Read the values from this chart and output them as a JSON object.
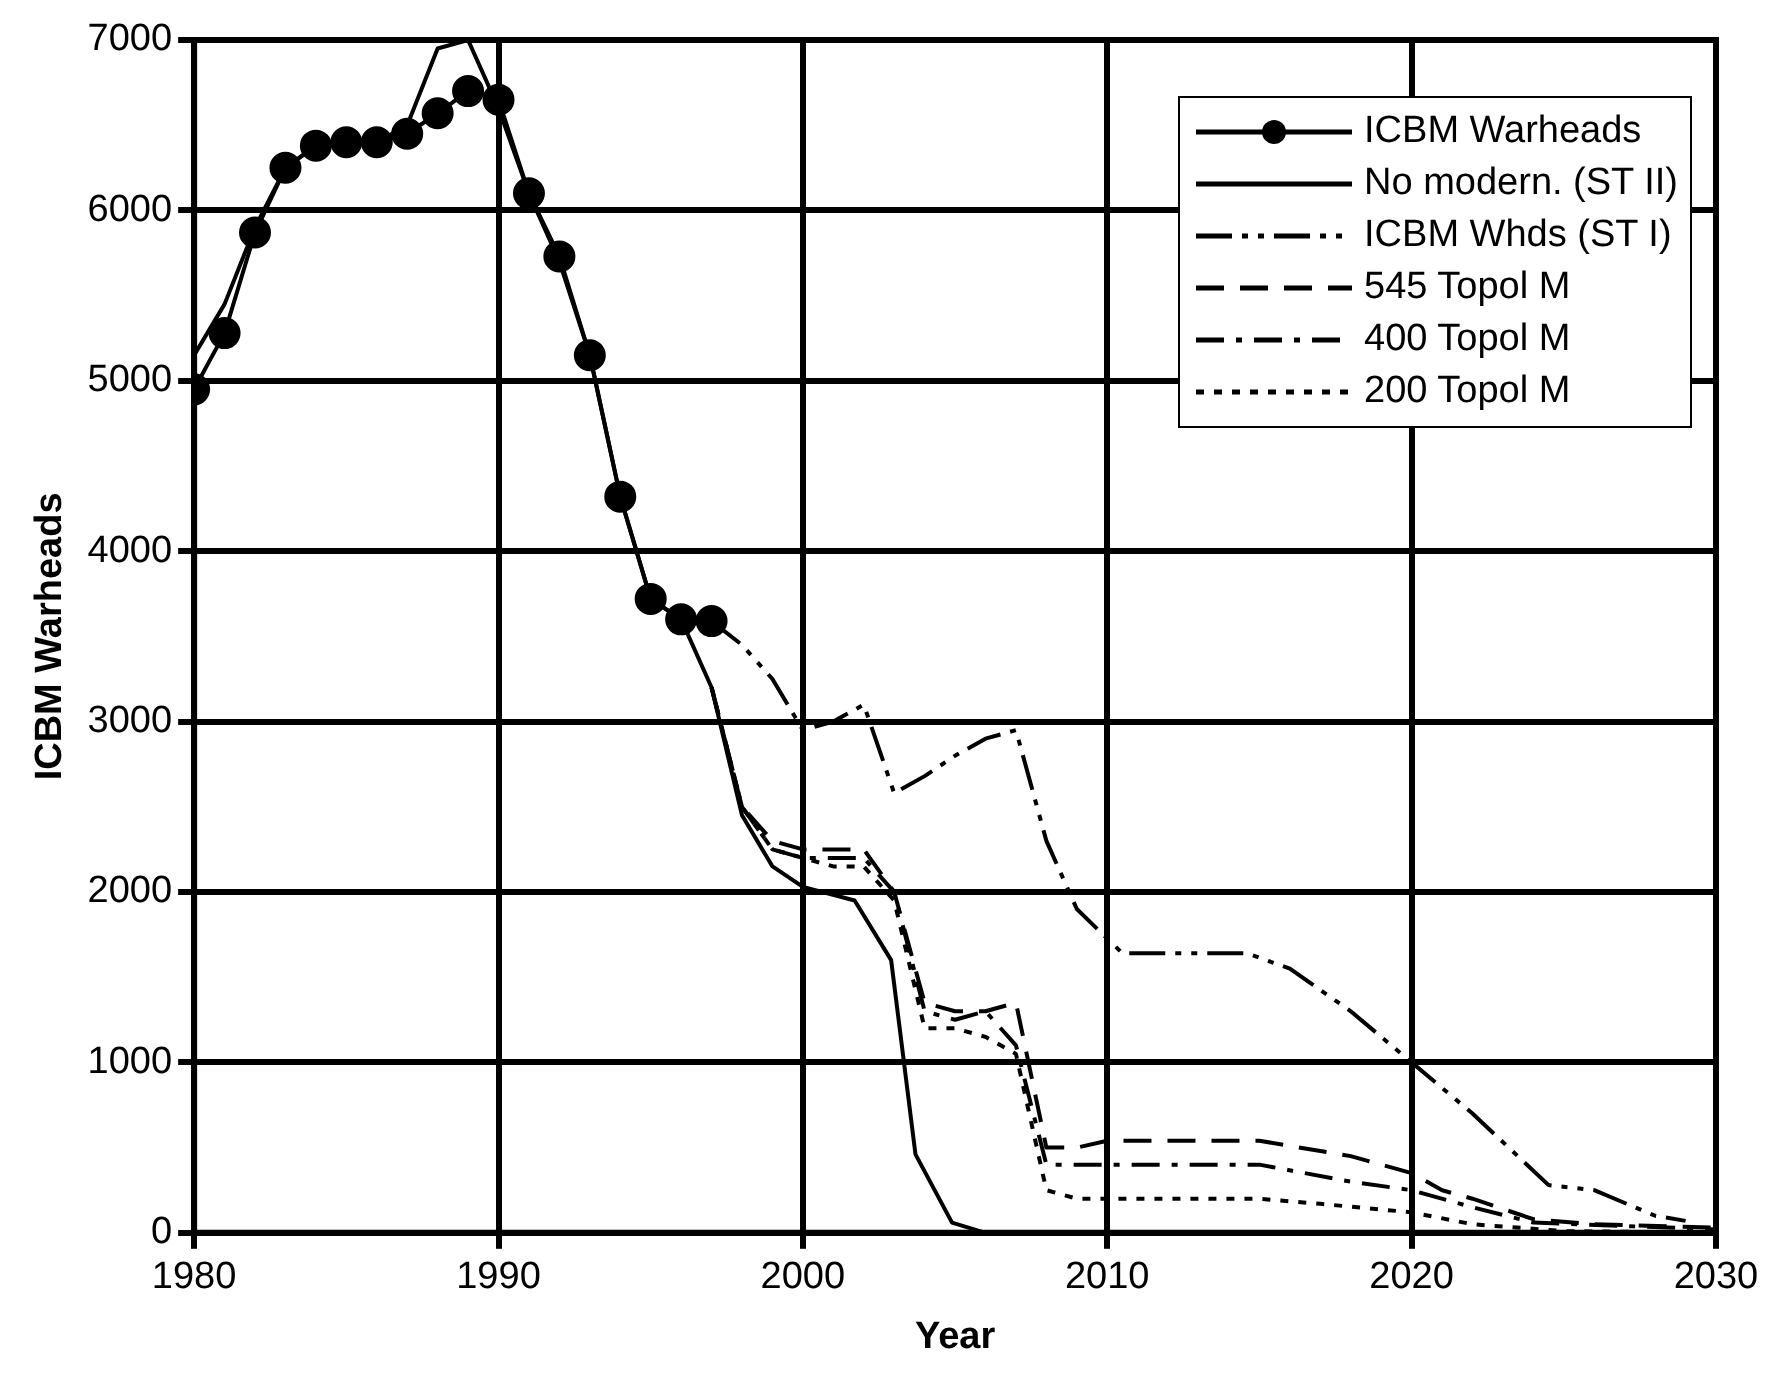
{
  "chart_data": {
    "type": "line",
    "xlabel": "Year",
    "ylabel": "ICBM Warheads",
    "xlim": [
      1980,
      2030
    ],
    "ylim": [
      0,
      7000
    ],
    "xticks": [
      1980,
      1990,
      2000,
      2010,
      2020,
      2030
    ],
    "yticks": [
      0,
      1000,
      2000,
      3000,
      4000,
      5000,
      6000,
      7000
    ],
    "grid": true,
    "legend": "top right",
    "series": [
      {
        "name": "ICBM Warheads",
        "color": "#000000",
        "marker": "circle",
        "line_style": "solid",
        "x": [
          1980,
          1981,
          1982,
          1983,
          1984,
          1985,
          1986,
          1987,
          1988,
          1989,
          1990,
          1991,
          1992,
          1993,
          1994,
          1995,
          1996,
          1997
        ],
        "values": [
          4950,
          5280,
          5870,
          6250,
          6380,
          6400,
          6400,
          6450,
          6570,
          6700,
          6650,
          6100,
          5730,
          5150,
          4320,
          3720,
          3600,
          3590
        ]
      },
      {
        "name": "No modern. (ST II)",
        "color": "#000000",
        "marker": "none",
        "line_style": "solid",
        "x": [
          1980,
          1981,
          1982,
          1983,
          1984,
          1986,
          1987,
          1988,
          1989,
          1990,
          1991,
          1992,
          1993,
          1994,
          1995,
          1996,
          1997,
          1998,
          1999,
          2000,
          2001.7,
          2002.9,
          2003.7,
          2004.9,
          2006,
          2030
        ],
        "values": [
          5150,
          5450,
          5900,
          6250,
          6380,
          6400,
          6500,
          6950,
          7000,
          6600,
          6100,
          5700,
          5150,
          4320,
          3720,
          3600,
          3200,
          2450,
          2150,
          2030,
          1950,
          1600,
          460,
          60,
          0,
          0
        ]
      },
      {
        "name": "ICBM Whds (ST I)",
        "color": "#000000",
        "marker": "none",
        "line_style": "dashed",
        "x": [
          1997,
          1998,
          1999,
          2000,
          2001,
          2002,
          2003,
          2004,
          2005,
          2006,
          2007,
          2008,
          2009,
          2010.5,
          2014.6,
          2016,
          2018,
          2020,
          2022,
          2024.5,
          2026,
          2028,
          2029
        ],
        "values": [
          3590,
          3450,
          3250,
          2950,
          3000,
          3100,
          2580,
          2680,
          2800,
          2900,
          2950,
          2300,
          1900,
          1640,
          1640,
          1550,
          1300,
          1000,
          700,
          280,
          250,
          100,
          70
        ]
      },
      {
        "name": "545 Topol M",
        "color": "#000000",
        "marker": "none",
        "line_style": "dashed",
        "x": [
          1997,
          1998,
          1999,
          2000,
          2001,
          2002,
          2003,
          2004,
          2005,
          2006,
          2007,
          2008,
          2009,
          2010,
          2015,
          2018,
          2020,
          2021,
          2022,
          2024,
          2026,
          2030
        ],
        "values": [
          3200,
          2500,
          2300,
          2250,
          2250,
          2250,
          2000,
          1350,
          1300,
          1300,
          1350,
          500,
          500,
          540,
          540,
          450,
          350,
          250,
          200,
          80,
          50,
          30
        ]
      },
      {
        "name": "400 Topol M",
        "color": "#000000",
        "marker": "none",
        "line_style": "dashed",
        "x": [
          1997,
          1998,
          1999,
          2000,
          2001,
          2002,
          2003,
          2004,
          2005,
          2006,
          2007,
          2008,
          2010,
          2015,
          2018,
          2020,
          2022,
          2024,
          2030
        ],
        "values": [
          3200,
          2500,
          2250,
          2200,
          2200,
          2200,
          2000,
          1300,
          1250,
          1300,
          1100,
          400,
          400,
          400,
          300,
          250,
          150,
          60,
          20
        ]
      },
      {
        "name": "200 Topol M",
        "color": "#000000",
        "marker": "none",
        "line_style": "dotted",
        "x": [
          1997,
          1998,
          1999,
          2000,
          2001,
          2002,
          2003,
          2004,
          2005,
          2006,
          2007,
          2008,
          2009,
          2015,
          2017,
          2020,
          2022,
          2025,
          2030
        ],
        "values": [
          3200,
          2500,
          2250,
          2200,
          2150,
          2150,
          1950,
          1200,
          1200,
          1150,
          1050,
          250,
          200,
          200,
          170,
          120,
          50,
          10,
          0
        ]
      }
    ]
  }
}
